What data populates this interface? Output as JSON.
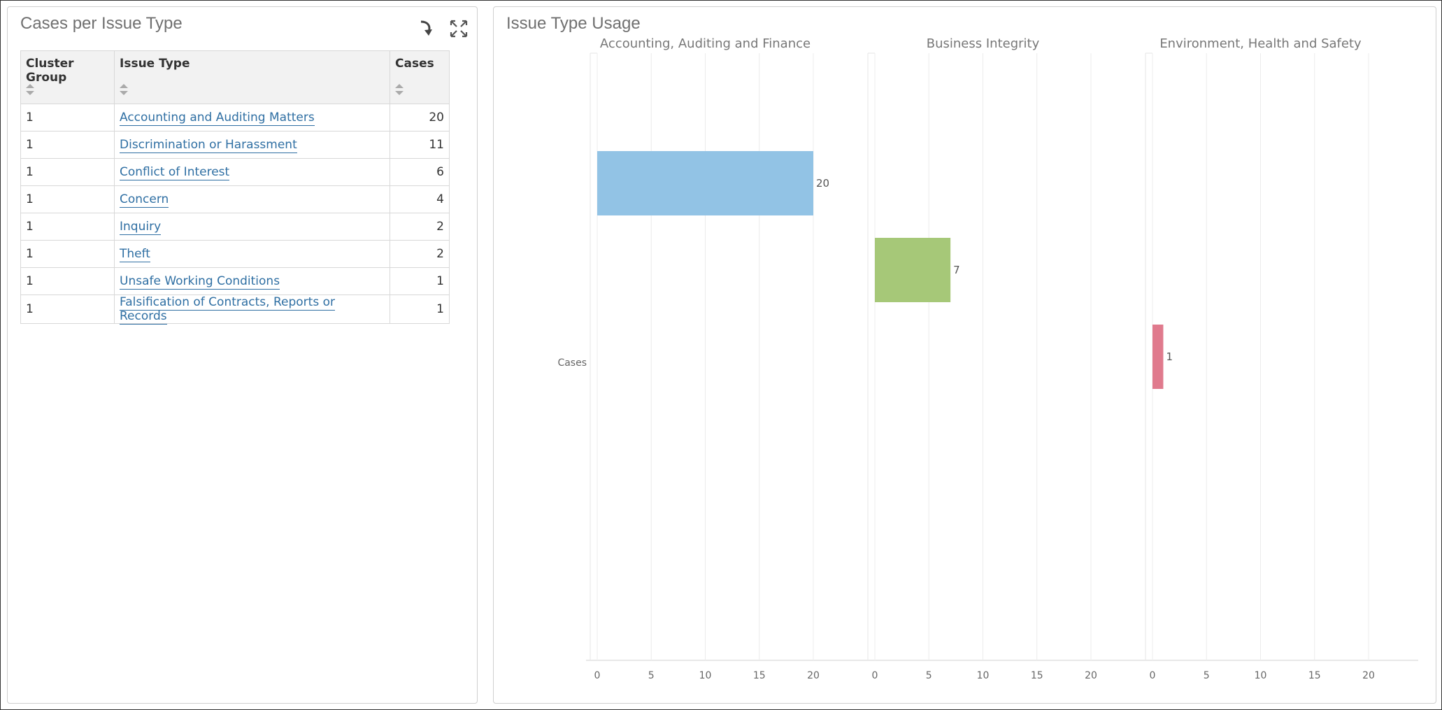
{
  "left_panel": {
    "title": "Cases per Issue Type",
    "columns": [
      "Cluster Group",
      "Issue Type",
      "Cases"
    ],
    "rows": [
      {
        "cluster": "1",
        "issue": "Accounting and Auditing Matters",
        "cases": "20"
      },
      {
        "cluster": "1",
        "issue": "Discrimination or Harassment",
        "cases": "11"
      },
      {
        "cluster": "1",
        "issue": "Conflict of Interest",
        "cases": "6"
      },
      {
        "cluster": "1",
        "issue": "Concern",
        "cases": "4"
      },
      {
        "cluster": "1",
        "issue": "Inquiry",
        "cases": "2"
      },
      {
        "cluster": "1",
        "issue": "Theft",
        "cases": "2"
      },
      {
        "cluster": "1",
        "issue": "Unsafe Working Conditions",
        "cases": "1"
      },
      {
        "cluster": "1",
        "issue": "Falsification of Contracts, Reports or Records",
        "cases": "1"
      }
    ],
    "icons": [
      "refresh-icon",
      "expand-icon"
    ]
  },
  "right_panel": {
    "title": "Issue Type Usage"
  },
  "chart_data": {
    "type": "bar",
    "orientation": "horizontal",
    "category_label": "Cases",
    "xlim": [
      0,
      20
    ],
    "ticks": [
      0,
      5,
      10,
      15,
      20
    ],
    "facets": [
      {
        "name": "Accounting, Auditing and Finance",
        "value": 20,
        "color": "#92c3e5"
      },
      {
        "name": "Business Integrity",
        "value": 7,
        "color": "#a6c878"
      },
      {
        "name": "Environment, Health and Safety",
        "value": 1,
        "color": "#e07a8d"
      }
    ]
  }
}
